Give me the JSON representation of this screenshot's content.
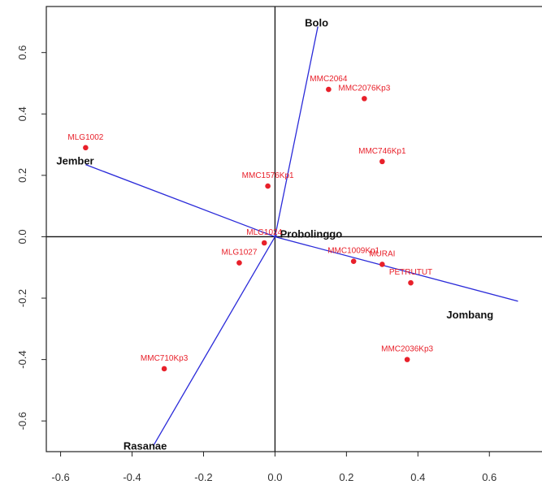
{
  "chart_data": {
    "type": "scatter",
    "title": "",
    "xlabel": "",
    "ylabel": "",
    "xlim": [
      -0.64,
      0.77
    ],
    "ylim": [
      -0.7,
      0.75
    ],
    "x_ticks": [
      {
        "value": -0.6,
        "label": "-0.6"
      },
      {
        "value": -0.4,
        "label": "-0.4"
      },
      {
        "value": -0.2,
        "label": "-0.2"
      },
      {
        "value": 0.0,
        "label": "0.0"
      },
      {
        "value": 0.2,
        "label": "0.2"
      },
      {
        "value": 0.4,
        "label": "0.4"
      },
      {
        "value": 0.6,
        "label": "0.6"
      }
    ],
    "y_ticks": [
      {
        "value": 0.6,
        "label": "0.6"
      },
      {
        "value": 0.4,
        "label": "0.4"
      },
      {
        "value": 0.2,
        "label": "0.2"
      },
      {
        "value": 0.0,
        "label": "0.0"
      },
      {
        "value": -0.2,
        "label": "-0.2"
      },
      {
        "value": -0.4,
        "label": "-0.4"
      },
      {
        "value": -0.6,
        "label": "-0.6"
      }
    ],
    "reference_lines": {
      "x": 0,
      "y": 0
    },
    "points": [
      {
        "label": "MLG1002",
        "x": -0.53,
        "y": 0.29
      },
      {
        "label": "MMC2064",
        "x": 0.15,
        "y": 0.48
      },
      {
        "label": "MMC2076Kp3",
        "x": 0.25,
        "y": 0.45
      },
      {
        "label": "MMC746Kp1",
        "x": 0.3,
        "y": 0.245
      },
      {
        "label": "MMC1576Kp1",
        "x": -0.02,
        "y": 0.165
      },
      {
        "label": "MLG1024",
        "x": -0.03,
        "y": -0.02
      },
      {
        "label": "MLG1027",
        "x": -0.1,
        "y": -0.085
      },
      {
        "label": "MMC1009Kp1",
        "x": 0.22,
        "y": -0.08
      },
      {
        "label": "MURAI",
        "x": 0.3,
        "y": -0.09
      },
      {
        "label": "PETRUTUT",
        "x": 0.38,
        "y": -0.15
      },
      {
        "label": "MMC2036Kp3",
        "x": 0.37,
        "y": -0.4
      },
      {
        "label": "MMC710Kp3",
        "x": -0.31,
        "y": -0.43
      }
    ],
    "vectors": [
      {
        "label": "Bolo",
        "x": 0.12,
        "y": 0.685
      },
      {
        "label": "Jember",
        "x": -0.53,
        "y": 0.235
      },
      {
        "label": "Probolinggo",
        "x": 0.005,
        "y": 0.005
      },
      {
        "label": "Jombang",
        "x": 0.68,
        "y": -0.21
      },
      {
        "label": "Rasanae",
        "x": -0.34,
        "y": -0.68
      }
    ],
    "colors": {
      "points": "#e8202a",
      "vectors": "#2b2bd9",
      "axes": "#111111"
    },
    "grid": false,
    "legend": "none"
  }
}
